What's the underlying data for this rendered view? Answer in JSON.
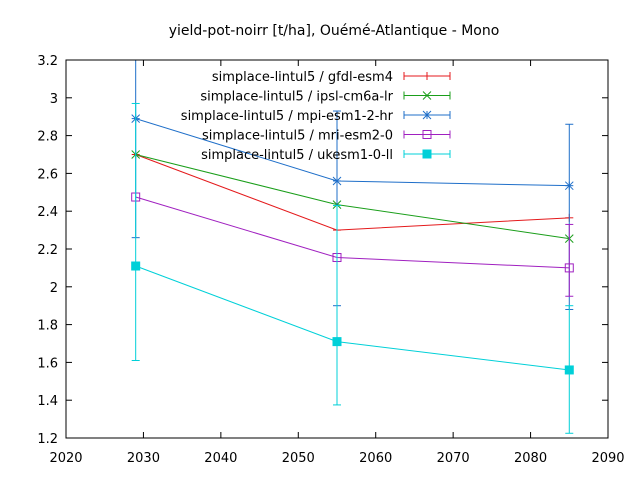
{
  "chart_data": {
    "type": "line",
    "title": "yield-pot-noirr [t/ha], Ouémé-Atlantique - Mono",
    "xlabel": "",
    "ylabel": "",
    "xlim": [
      2020,
      2090
    ],
    "ylim": [
      1.2,
      3.2
    ],
    "xticks": [
      2020,
      2030,
      2040,
      2050,
      2060,
      2070,
      2080,
      2090
    ],
    "yticks": [
      1.2,
      1.4,
      1.6,
      1.8,
      2,
      2.2,
      2.4,
      2.6,
      2.8,
      3,
      3.2
    ],
    "x": [
      2029,
      2055,
      2085
    ],
    "grid": false,
    "legend_position": "top-right",
    "series": [
      {
        "name": "simplace-lintul5 / gfdl-esm4",
        "color": "#e41a1c",
        "marker": "plus",
        "values": [
          2.7,
          2.3,
          2.365
        ],
        "err_low": [
          null,
          null,
          null
        ],
        "err_high": [
          null,
          null,
          null
        ]
      },
      {
        "name": "simplace-lintul5 / ipsl-cm6a-lr",
        "color": "#1a9e1a",
        "marker": "cross",
        "values": [
          2.7,
          2.435,
          2.255
        ],
        "err_low": [
          null,
          null,
          null
        ],
        "err_high": [
          null,
          null,
          null
        ]
      },
      {
        "name": "simplace-lintul5 / mpi-esm1-2-hr",
        "color": "#1f6fc9",
        "marker": "star",
        "values": [
          2.89,
          2.56,
          2.535
        ],
        "err_low": [
          2.26,
          1.9,
          1.88
        ],
        "err_high": [
          3.2,
          2.93,
          2.86
        ]
      },
      {
        "name": "simplace-lintul5 / mri-esm2-0",
        "color": "#a020c0",
        "marker": "square",
        "values": [
          2.475,
          2.155,
          2.1
        ],
        "err_low": [
          null,
          null,
          1.95
        ],
        "err_high": [
          null,
          null,
          2.33
        ]
      },
      {
        "name": "simplace-lintul5 / ukesm1-0-ll",
        "color": "#00d0d8",
        "marker": "filled-square",
        "values": [
          2.11,
          1.71,
          1.56
        ],
        "err_low": [
          1.61,
          1.375,
          1.225
        ],
        "err_high": [
          2.97,
          2.43,
          1.9
        ]
      }
    ]
  }
}
